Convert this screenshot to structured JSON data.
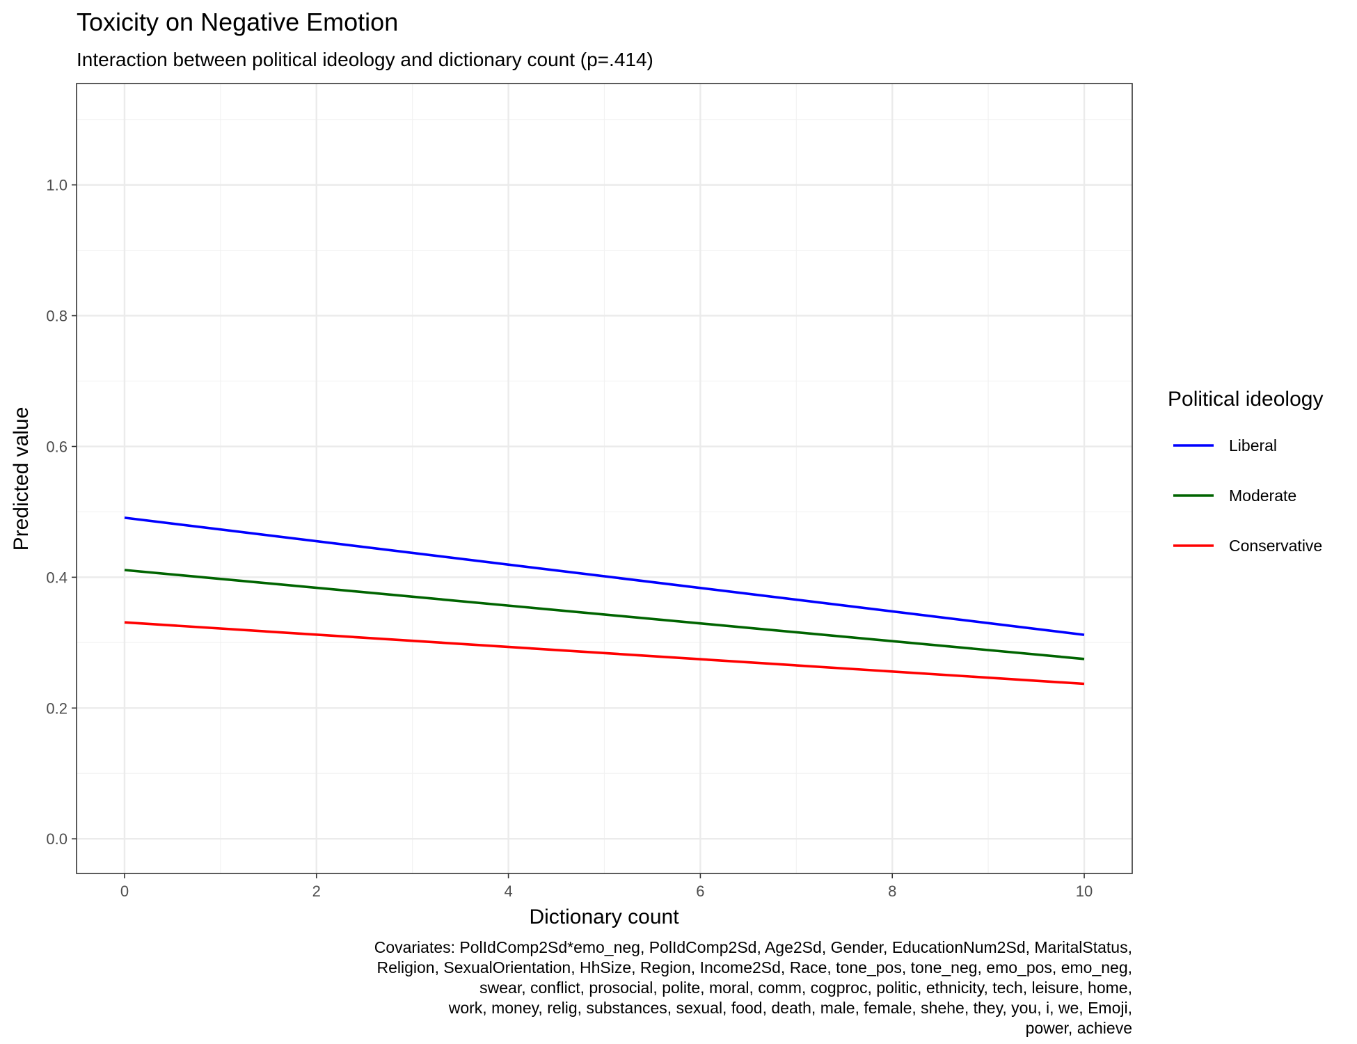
{
  "chart_data": {
    "type": "line",
    "title": "Toxicity on Negative Emotion",
    "subtitle": "Interaction between political ideology and dictionary count (p=.414)",
    "xlabel": "Dictionary count",
    "ylabel": "Predicted value",
    "xlim": [
      -0.5,
      10.5
    ],
    "ylim": [
      -0.053,
      1.155
    ],
    "x_ticks": [
      0,
      2,
      4,
      6,
      8,
      10
    ],
    "y_ticks": [
      0.0,
      0.2,
      0.4,
      0.6,
      0.8,
      1.0
    ],
    "x_tick_labels": [
      "0",
      "2",
      "4",
      "6",
      "8",
      "10"
    ],
    "y_tick_labels": [
      "0.0",
      "0.2",
      "0.4",
      "0.6",
      "0.8",
      "1.0"
    ],
    "grid": true,
    "legend_position": "right",
    "legend_title": "Political ideology",
    "series": [
      {
        "name": "Liberal",
        "color": "#0000ff",
        "x": [
          0,
          10
        ],
        "y": [
          0.491,
          0.312
        ]
      },
      {
        "name": "Moderate",
        "color": "#006400",
        "x": [
          0,
          10
        ],
        "y": [
          0.411,
          0.275
        ]
      },
      {
        "name": "Conservative",
        "color": "#ff0000",
        "x": [
          0,
          10
        ],
        "y": [
          0.331,
          0.237
        ]
      }
    ],
    "caption_lines": [
      "Covariates: PolIdComp2Sd*emo_neg, PolIdComp2Sd, Age2Sd, Gender, EducationNum2Sd, MaritalStatus,",
      "Religion, SexualOrientation, HhSize, Region, Income2Sd, Race, tone_pos, tone_neg, emo_pos, emo_neg,",
      "swear, conflict, prosocial, polite, moral, comm, cogproc, politic, ethnicity, tech, leisure, home,",
      "work, money, relig, substances, sexual, food, death, male, female, shehe, they, you, i, we, Emoji,",
      "power, achieve"
    ]
  }
}
